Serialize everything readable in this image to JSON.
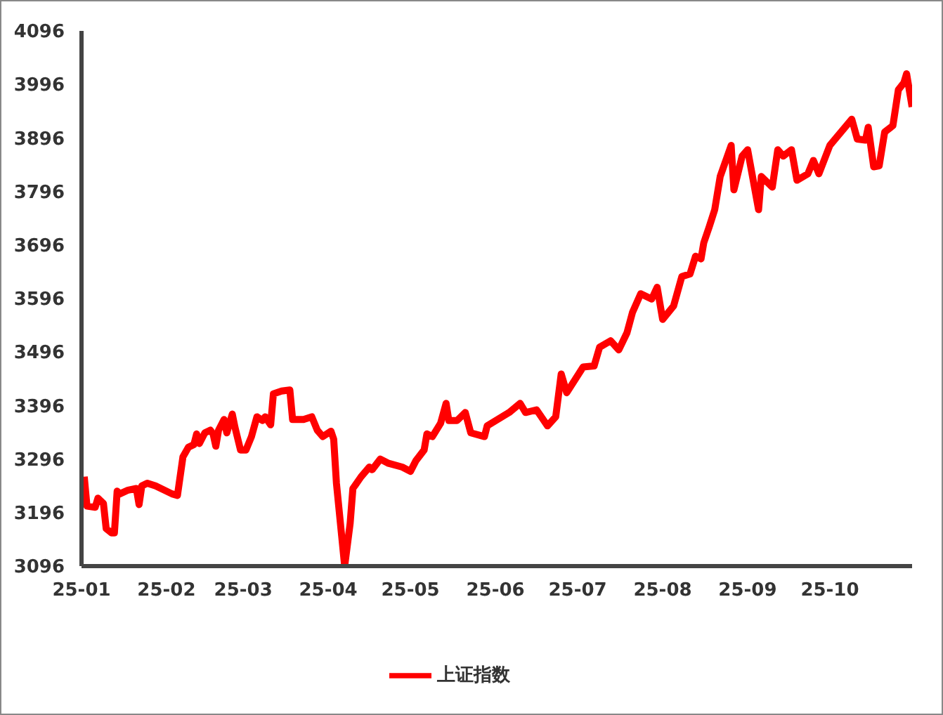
{
  "chart_data": {
    "type": "line",
    "x": [
      "--01-02",
      "--01-03",
      "--01-06",
      "--01-07",
      "--01-09",
      "--01-10",
      "--01-12",
      "--01-13",
      "--01-14",
      "--01-15",
      "--01-18",
      "--01-21",
      "--01-22",
      "--01-23",
      "--01-25",
      "--01-28",
      "--02-03",
      "--02-05",
      "--02-07",
      "--02-09",
      "--02-11",
      "--02-12",
      "--02-13",
      "--02-15",
      "--02-17",
      "--02-18",
      "--02-19",
      "--02-20",
      "--02-22",
      "--02-23",
      "--02-25",
      "--02-26",
      "--02-28",
      "--03-02",
      "--03-04",
      "--03-06",
      "--03-08",
      "--03-09",
      "--03-11",
      "--03-12",
      "--03-15",
      "--03-18",
      "--03-19",
      "--03-23",
      "--03-26",
      "--03-28",
      "--03-30",
      "--04-02",
      "--04-03",
      "--04-04",
      "--04-07",
      "--04-09",
      "--04-10",
      "--04-13",
      "--04-16",
      "--04-17",
      "--04-20",
      "--04-23",
      "--04-28",
      "--05-01",
      "--05-03",
      "--05-06",
      "--05-07",
      "--05-09",
      "--05-12",
      "--05-14",
      "--05-15",
      "--05-18",
      "--05-21",
      "--05-23",
      "--05-28",
      "--05-29",
      "--06-06",
      "--06-10",
      "--06-12",
      "--06-16",
      "--06-20",
      "--06-23",
      "--06-25",
      "--06-27",
      "--07-03",
      "--07-07",
      "--07-09",
      "--07-13",
      "--07-16",
      "--07-19",
      "--07-21",
      "--07-24",
      "--07-28",
      "--07-30",
      "--08-01",
      "--08-05",
      "--08-08",
      "--08-11",
      "--08-13",
      "--08-15",
      "--08-16",
      "--08-18",
      "--08-20",
      "--08-22",
      "--08-26",
      "--08-27",
      "--08-30",
      "--09-01",
      "--09-05",
      "--09-06",
      "--09-10",
      "--09-12",
      "--09-14",
      "--09-17",
      "--09-19",
      "--09-23",
      "--09-25",
      "--09-27",
      "--10-01",
      "--10-09",
      "--10-11",
      "--10-14",
      "--10-15",
      "--10-17",
      "--10-19",
      "--10-21",
      "--10-24",
      "--10-26",
      "--10-28",
      "--10-29",
      "--10-31"
    ],
    "series": [
      {
        "name": "上证指数",
        "color": "#ff0000",
        "values": [
          3263,
          3208,
          3206,
          3223,
          3213,
          3166,
          3158,
          3158,
          3236,
          3231,
          3238,
          3241,
          3211,
          3246,
          3251,
          3246,
          3231,
          3228,
          3300,
          3318,
          3323,
          3343,
          3325,
          3345,
          3350,
          3343,
          3320,
          3350,
          3370,
          3345,
          3380,
          3355,
          3313,
          3313,
          3338,
          3375,
          3368,
          3375,
          3360,
          3418,
          3423,
          3425,
          3370,
          3370,
          3375,
          3350,
          3338,
          3348,
          3333,
          3251,
          3096,
          3176,
          3241,
          3263,
          3281,
          3276,
          3296,
          3288,
          3281,
          3273,
          3293,
          3313,
          3343,
          3338,
          3363,
          3400,
          3368,
          3368,
          3383,
          3345,
          3338,
          3358,
          3383,
          3400,
          3383,
          3388,
          3358,
          3375,
          3455,
          3420,
          3468,
          3470,
          3505,
          3517,
          3500,
          3532,
          3570,
          3605,
          3595,
          3617,
          3557,
          3582,
          3637,
          3642,
          3675,
          3670,
          3700,
          3730,
          3762,
          3824,
          3882,
          3799,
          3862,
          3874,
          3762,
          3824,
          3804,
          3874,
          3862,
          3874,
          3817,
          3829,
          3854,
          3829,
          3882,
          3931,
          3894,
          3892,
          3916,
          3842,
          3844,
          3907,
          3919,
          3986,
          3999,
          4016,
          3954
        ]
      }
    ],
    "xlim": [
      "--01-01",
      "--10-31"
    ],
    "xticks": [
      {
        "value": "--01-01",
        "label": "25-01"
      },
      {
        "value": "--02-01",
        "label": "25-02"
      },
      {
        "value": "--03-01",
        "label": "25-03"
      },
      {
        "value": "--04-01",
        "label": "25-04"
      },
      {
        "value": "--05-01",
        "label": "25-05"
      },
      {
        "value": "--06-01",
        "label": "25-06"
      },
      {
        "value": "--07-01",
        "label": "25-07"
      },
      {
        "value": "--08-01",
        "label": "25-08"
      },
      {
        "value": "--09-01",
        "label": "25-09"
      },
      {
        "value": "--10-01",
        "label": "25-10"
      }
    ],
    "ylim": [
      3096,
      4096
    ],
    "yticks": [
      3096,
      3196,
      3296,
      3396,
      3496,
      3596,
      3696,
      3796,
      3896,
      3996,
      4096
    ],
    "grid": false,
    "legend": "bottom",
    "marker": "none",
    "line_style": "solid"
  }
}
